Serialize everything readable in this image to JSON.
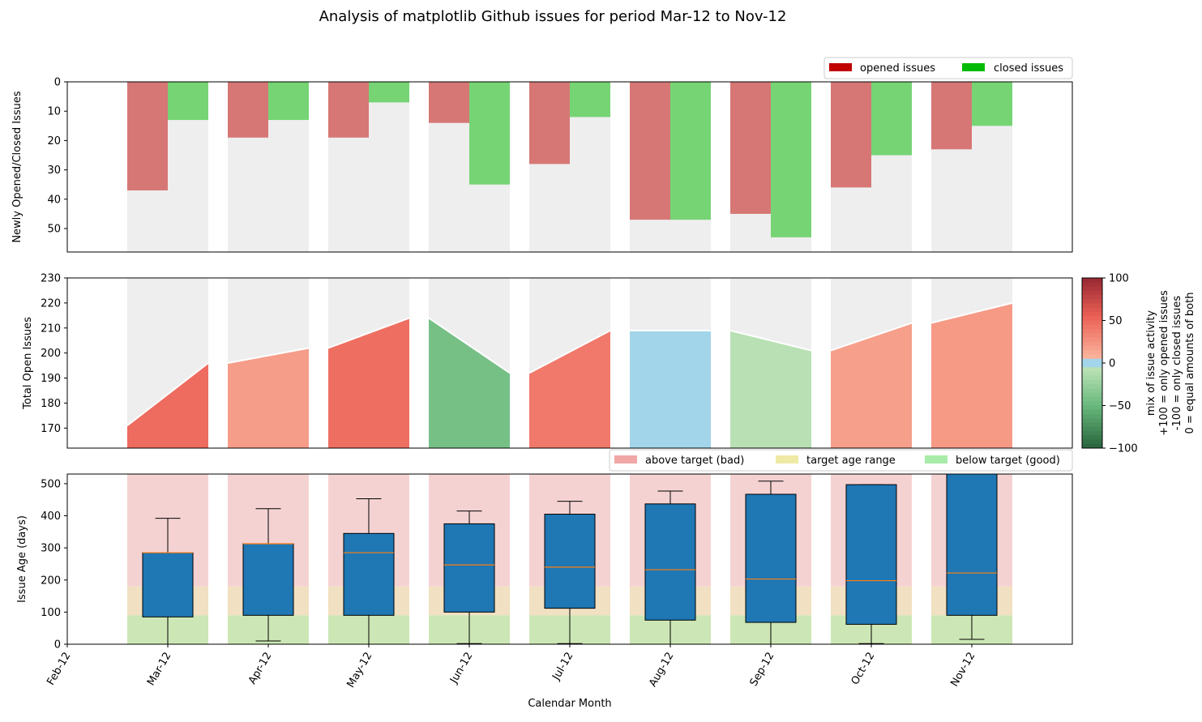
{
  "title": "Analysis of matplotlib Github issues for period Mar-12 to Nov-12",
  "months": [
    "Feb-12",
    "Mar-12",
    "Apr-12",
    "May-12",
    "Jun-12",
    "Jul-12",
    "Aug-12",
    "Sep-12",
    "Oct-12",
    "Nov-12"
  ],
  "xlabel": "Calendar Month",
  "colors": {
    "opened": "#d67775",
    "closed": "#76d475",
    "grey_bg": "#eeeeee",
    "legend_opened": "#c00000",
    "legend_closed": "#00bb00",
    "above_target": "#f5d2d2",
    "target_range": "#f1e0c1",
    "below_target": "#cce7b5",
    "box": "#1f77b4",
    "median": "#ff7f0e",
    "aug_zero": "#a2d5ea"
  },
  "legends": {
    "top": [
      "opened issues",
      "closed issues"
    ],
    "bottom": [
      "above target (bad)",
      "target age range",
      "below target (good)"
    ]
  },
  "colorbar": {
    "label_lines": [
      "mix of issue activity",
      "+100 = only opened issues",
      "-100 = only closed issues",
      "0 = equal amounts of both"
    ],
    "ticks": [
      "100",
      "50",
      "0",
      "−50",
      "−100"
    ]
  },
  "chart_data": [
    {
      "type": "bar",
      "ylabel": "Newly Opened/Closed Issues",
      "y_inverted": true,
      "ylim": [
        0,
        58
      ],
      "yticks": [
        "0",
        "10",
        "20",
        "30",
        "40",
        "50"
      ],
      "categories": [
        "Mar-12",
        "Apr-12",
        "May-12",
        "Jun-12",
        "Jul-12",
        "Aug-12",
        "Sep-12",
        "Oct-12",
        "Nov-12"
      ],
      "series": [
        {
          "name": "opened issues",
          "values": [
            37,
            19,
            19,
            14,
            28,
            47,
            45,
            36,
            23
          ]
        },
        {
          "name": "closed issues",
          "values": [
            13,
            13,
            7,
            35,
            12,
            47,
            53,
            25,
            15
          ]
        }
      ]
    },
    {
      "type": "area",
      "ylabel": "Total Open Issues",
      "ylim": [
        162,
        230
      ],
      "yticks": [
        "170",
        "180",
        "190",
        "200",
        "210",
        "220",
        "230"
      ],
      "categories": [
        "Mar-12",
        "Apr-12",
        "May-12",
        "Jun-12",
        "Jul-12",
        "Aug-12",
        "Sep-12",
        "Oct-12",
        "Nov-12"
      ],
      "start_values": [
        171,
        196,
        202,
        214,
        192,
        209,
        209,
        201,
        212
      ],
      "end_values": [
        196,
        202,
        214,
        192,
        209,
        209,
        201,
        212,
        220
      ],
      "activity_mix": [
        48,
        19,
        46,
        -43,
        40,
        0,
        -8,
        18,
        21
      ]
    },
    {
      "type": "box",
      "ylabel": "Issue Age (days)",
      "ylim": [
        0,
        530
      ],
      "yticks": [
        "0",
        "100",
        "200",
        "300",
        "400",
        "500"
      ],
      "target_age_range": [
        90,
        180
      ],
      "categories": [
        "Mar-12",
        "Apr-12",
        "May-12",
        "Jun-12",
        "Jul-12",
        "Aug-12",
        "Sep-12",
        "Oct-12",
        "Nov-12"
      ],
      "boxes": [
        {
          "whislo": 0,
          "q1": 85,
          "med": 285,
          "q3": 285,
          "whishi": 392
        },
        {
          "whislo": 10,
          "q1": 90,
          "med": 313,
          "q3": 313,
          "whishi": 422
        },
        {
          "whislo": 0,
          "q1": 90,
          "med": 285,
          "q3": 345,
          "whishi": 453
        },
        {
          "whislo": 2,
          "q1": 100,
          "med": 247,
          "q3": 375,
          "whishi": 415
        },
        {
          "whislo": 2,
          "q1": 112,
          "med": 240,
          "q3": 405,
          "whishi": 445
        },
        {
          "whislo": 0,
          "q1": 75,
          "med": 232,
          "q3": 437,
          "whishi": 477
        },
        {
          "whislo": 0,
          "q1": 68,
          "med": 203,
          "q3": 467,
          "whishi": 508
        },
        {
          "whislo": 2,
          "q1": 62,
          "med": 198,
          "q3": 497,
          "whishi": 497
        },
        {
          "whislo": 15,
          "q1": 90,
          "med": 222,
          "q3": 530,
          "whishi": 530
        }
      ]
    }
  ]
}
